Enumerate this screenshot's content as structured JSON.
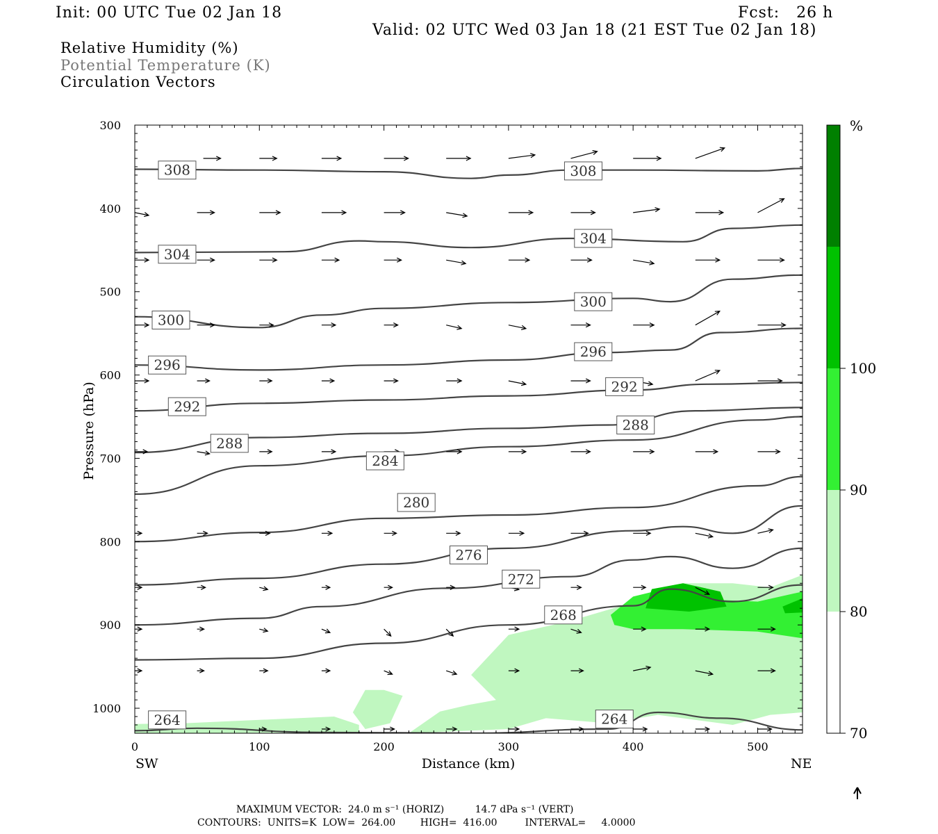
{
  "header": {
    "init": "Init: 00 UTC Tue 02 Jan 18",
    "fcst": "Fcst:   26 h",
    "valid": "Valid: 02 UTC Wed 03 Jan 18 (21 EST Tue 02 Jan 18)"
  },
  "legend": {
    "line1": "Relative Humidity (%)",
    "line2": "Potential Temperature (K)",
    "line3": "Circulation Vectors"
  },
  "footer": {
    "max_vector": "MAXIMUM VECTOR:  24.0 m s⁻¹ (HORIZ)          14.7 dPa s⁻¹ (VERT)",
    "contours": "CONTOURS:  UNITS=K  LOW=  264.00        HIGH=  416.00         INTERVAL=     4.0000"
  },
  "colors": {
    "rh70": "#c0f7c0",
    "rh80": "#33f033",
    "rh90": "#00c200",
    "rh100": "#008000",
    "theta": "#444444"
  },
  "chart_data": {
    "type": "cross-section",
    "xlabel": "Distance (km)",
    "ylabel": "Pressure (hPa)",
    "xlim": [
      0,
      536
    ],
    "ylim": [
      1030,
      300
    ],
    "x_ticks": [
      0,
      100,
      200,
      300,
      400,
      500
    ],
    "y_ticks": [
      300,
      400,
      500,
      600,
      700,
      800,
      900,
      1000
    ],
    "x_left_label": "SW",
    "x_right_label": "NE",
    "colorbar": {
      "unit": "%",
      "levels": [
        70,
        80,
        90,
        100
      ],
      "labels": [
        "70",
        "80",
        "90",
        "100"
      ]
    },
    "theta_contours": [
      {
        "value": 308,
        "points": [
          [
            0,
            353
          ],
          [
            100,
            354
          ],
          [
            200,
            356
          ],
          [
            270,
            364
          ],
          [
            300,
            360
          ],
          [
            350,
            354
          ],
          [
            400,
            354
          ],
          [
            500,
            355
          ],
          [
            536,
            352
          ]
        ]
      },
      {
        "value": 304,
        "points": [
          [
            0,
            453
          ],
          [
            120,
            452
          ],
          [
            180,
            439
          ],
          [
            200,
            440
          ],
          [
            270,
            447
          ],
          [
            350,
            436
          ],
          [
            440,
            440
          ],
          [
            480,
            424
          ],
          [
            536,
            420
          ]
        ]
      },
      {
        "value": 300,
        "points": [
          [
            0,
            530
          ],
          [
            100,
            543
          ],
          [
            150,
            528
          ],
          [
            200,
            520
          ],
          [
            300,
            513
          ],
          [
            400,
            508
          ],
          [
            430,
            512
          ],
          [
            480,
            485
          ],
          [
            536,
            480
          ]
        ]
      },
      {
        "value": 296,
        "points": [
          [
            0,
            588
          ],
          [
            100,
            594
          ],
          [
            200,
            588
          ],
          [
            300,
            582
          ],
          [
            380,
            573
          ],
          [
            430,
            570
          ],
          [
            470,
            549
          ],
          [
            536,
            544
          ]
        ]
      },
      {
        "value": 292,
        "points": [
          [
            0,
            643
          ],
          [
            100,
            634
          ],
          [
            200,
            630
          ],
          [
            300,
            625
          ],
          [
            400,
            618
          ],
          [
            460,
            611
          ],
          [
            536,
            609
          ]
        ]
      },
      {
        "value": 288,
        "points": [
          [
            0,
            693
          ],
          [
            100,
            675
          ],
          [
            200,
            670
          ],
          [
            300,
            664
          ],
          [
            380,
            660
          ],
          [
            450,
            643
          ],
          [
            536,
            639
          ]
        ]
      },
      {
        "value": 284,
        "points": [
          [
            0,
            743
          ],
          [
            100,
            709
          ],
          [
            200,
            697
          ],
          [
            300,
            686
          ],
          [
            400,
            678
          ],
          [
            500,
            654
          ],
          [
            536,
            650
          ]
        ]
      },
      {
        "value": 280,
        "points": [
          [
            0,
            800
          ],
          [
            100,
            789
          ],
          [
            200,
            772
          ],
          [
            300,
            768
          ],
          [
            400,
            759
          ],
          [
            500,
            733
          ],
          [
            536,
            722
          ]
        ]
      },
      {
        "value": 276,
        "points": [
          [
            0,
            852
          ],
          [
            100,
            844
          ],
          [
            200,
            827
          ],
          [
            300,
            808
          ],
          [
            400,
            787
          ],
          [
            440,
            782
          ],
          [
            480,
            790
          ],
          [
            536,
            757
          ]
        ]
      },
      {
        "value": 272,
        "points": [
          [
            0,
            900
          ],
          [
            100,
            892
          ],
          [
            150,
            878
          ],
          [
            250,
            856
          ],
          [
            350,
            842
          ],
          [
            400,
            822
          ],
          [
            430,
            818
          ],
          [
            480,
            832
          ],
          [
            536,
            808
          ]
        ]
      },
      {
        "value": 268,
        "points": [
          [
            0,
            942
          ],
          [
            100,
            940
          ],
          [
            200,
            922
          ],
          [
            300,
            900
          ],
          [
            400,
            877
          ],
          [
            430,
            857
          ],
          [
            480,
            872
          ],
          [
            536,
            852
          ]
        ]
      },
      {
        "value": 264,
        "points": [
          [
            0,
            1027
          ],
          [
            50,
            1024
          ],
          [
            150,
            1029
          ],
          [
            270,
            1030
          ],
          [
            380,
            1025
          ],
          [
            420,
            1005
          ],
          [
            470,
            1012
          ],
          [
            536,
            1026
          ]
        ]
      }
    ],
    "rh_regions": [
      {
        "level": 70,
        "points": [
          [
            200,
            978
          ],
          [
            215,
            985
          ],
          [
            205,
            1018
          ],
          [
            185,
            1025
          ],
          [
            175,
            1005
          ],
          [
            185,
            978
          ]
        ]
      },
      {
        "level": 70,
        "points": [
          [
            0,
            1019
          ],
          [
            40,
            1018
          ],
          [
            160,
            1010
          ],
          [
            180,
            1020
          ],
          [
            180,
            1029
          ],
          [
            0,
            1030
          ]
        ]
      },
      {
        "level": 70,
        "points": [
          [
            220,
            1030
          ],
          [
            245,
            1004
          ],
          [
            268,
            996
          ],
          [
            290,
            990
          ],
          [
            270,
            960
          ],
          [
            300,
            912
          ],
          [
            350,
            895
          ],
          [
            400,
            873
          ],
          [
            440,
            850
          ],
          [
            480,
            850
          ],
          [
            510,
            855
          ],
          [
            536,
            840
          ],
          [
            536,
            1005
          ],
          [
            510,
            1008
          ],
          [
            480,
            1020
          ],
          [
            420,
            1008
          ],
          [
            380,
            1018
          ],
          [
            330,
            1012
          ],
          [
            300,
            1025
          ]
        ]
      },
      {
        "level": 80,
        "points": [
          [
            382,
            888
          ],
          [
            400,
            866
          ],
          [
            430,
            855
          ],
          [
            470,
            870
          ],
          [
            500,
            872
          ],
          [
            536,
            860
          ],
          [
            536,
            916
          ],
          [
            500,
            908
          ],
          [
            440,
            905
          ],
          [
            400,
            905
          ],
          [
            385,
            900
          ]
        ]
      },
      {
        "level": 90,
        "points": [
          [
            410,
            880
          ],
          [
            415,
            857
          ],
          [
            440,
            850
          ],
          [
            470,
            860
          ],
          [
            475,
            878
          ],
          [
            445,
            884
          ]
        ]
      },
      {
        "level": 90,
        "points": [
          [
            520,
            878
          ],
          [
            536,
            868
          ],
          [
            536,
            885
          ],
          [
            522,
            886
          ]
        ]
      }
    ],
    "vectors": [
      {
        "p": 340,
        "x": [
          55,
          100,
          150,
          200,
          250,
          300,
          350,
          400,
          450
        ],
        "dx": [
          25,
          25,
          28,
          35,
          35,
          38,
          38,
          40,
          42
        ],
        "dy": [
          0,
          0,
          0,
          0,
          0,
          -5,
          -10,
          0,
          -15
        ]
      },
      {
        "p": 405,
        "x": [
          0,
          50,
          100,
          150,
          200,
          250,
          300,
          350,
          400,
          450,
          500
        ],
        "dx": [
          20,
          25,
          30,
          35,
          30,
          30,
          35,
          35,
          38,
          40,
          38
        ],
        "dy": [
          4,
          0,
          0,
          0,
          0,
          5,
          0,
          0,
          -5,
          0,
          -20
        ]
      },
      {
        "p": 462,
        "x": [
          0,
          50,
          100,
          150,
          200,
          250,
          300,
          350,
          400,
          450,
          500
        ],
        "dx": [
          20,
          25,
          25,
          25,
          25,
          28,
          30,
          30,
          30,
          35,
          38
        ],
        "dy": [
          0,
          0,
          0,
          0,
          0,
          5,
          0,
          0,
          5,
          0,
          0
        ]
      },
      {
        "p": 540,
        "x": [
          0,
          50,
          100,
          150,
          200,
          250,
          300,
          350,
          400,
          450,
          500
        ],
        "dx": [
          20,
          25,
          20,
          20,
          20,
          22,
          25,
          28,
          30,
          35,
          40
        ],
        "dy": [
          0,
          0,
          0,
          0,
          0,
          5,
          5,
          0,
          0,
          -20,
          0
        ]
      },
      {
        "p": 607,
        "x": [
          0,
          50,
          100,
          150,
          200,
          250,
          300,
          350,
          400,
          450,
          500
        ],
        "dx": [
          20,
          18,
          18,
          18,
          20,
          22,
          25,
          28,
          28,
          35,
          35
        ],
        "dy": [
          0,
          0,
          0,
          0,
          0,
          0,
          5,
          0,
          5,
          -15,
          0
        ]
      },
      {
        "p": 692,
        "x": [
          0,
          50,
          100,
          150,
          200,
          250,
          300,
          350,
          400,
          450,
          500
        ],
        "dx": [
          18,
          18,
          18,
          20,
          22,
          22,
          25,
          28,
          30,
          32,
          32
        ],
        "dy": [
          0,
          3,
          0,
          0,
          0,
          0,
          0,
          0,
          0,
          0,
          0
        ]
      },
      {
        "p": 790,
        "x": [
          0,
          50,
          100,
          150,
          200,
          250,
          300,
          350,
          400,
          450,
          500
        ],
        "dx": [
          10,
          15,
          15,
          15,
          18,
          20,
          22,
          25,
          25,
          25,
          22
        ],
        "dy": [
          0,
          0,
          0,
          0,
          0,
          0,
          0,
          0,
          0,
          5,
          -5
        ]
      },
      {
        "p": 855,
        "x": [
          0,
          50,
          100,
          150,
          200,
          250,
          300,
          350,
          400,
          450,
          500
        ],
        "dx": [
          10,
          12,
          12,
          12,
          12,
          12,
          15,
          15,
          18,
          20,
          22
        ],
        "dy": [
          0,
          0,
          3,
          0,
          0,
          0,
          3,
          0,
          0,
          10,
          0
        ]
      },
      {
        "p": 905,
        "x": [
          0,
          50,
          100,
          150,
          200,
          250,
          300,
          350,
          400,
          450,
          500
        ],
        "dx": [
          10,
          10,
          12,
          12,
          10,
          10,
          15,
          15,
          18,
          20,
          25
        ],
        "dy": [
          0,
          0,
          3,
          5,
          10,
          10,
          0,
          5,
          0,
          0,
          0
        ]
      },
      {
        "p": 955,
        "x": [
          0,
          50,
          100,
          150,
          200,
          250,
          300,
          350,
          400,
          450,
          500
        ],
        "dx": [
          10,
          10,
          12,
          12,
          12,
          15,
          15,
          18,
          25,
          25,
          25
        ],
        "dy": [
          0,
          0,
          0,
          0,
          5,
          5,
          0,
          0,
          -5,
          5,
          0
        ]
      },
      {
        "p": 1025,
        "x": [
          100,
          150,
          200,
          250,
          300,
          350,
          400,
          450,
          500
        ],
        "dx": [
          10,
          12,
          15,
          15,
          15,
          18,
          20,
          20,
          20
        ],
        "dy": [
          0,
          0,
          0,
          0,
          0,
          0,
          0,
          0,
          0
        ]
      }
    ],
    "theta_labels": [
      {
        "value": "308",
        "x": 34,
        "p": 354
      },
      {
        "value": "308",
        "x": 360,
        "p": 355
      },
      {
        "value": "304",
        "x": 34,
        "p": 455
      },
      {
        "value": "304",
        "x": 368,
        "p": 436
      },
      {
        "value": "300",
        "x": 29,
        "p": 534
      },
      {
        "value": "300",
        "x": 368,
        "p": 512
      },
      {
        "value": "296",
        "x": 26,
        "p": 588
      },
      {
        "value": "296",
        "x": 368,
        "p": 572
      },
      {
        "value": "292",
        "x": 42,
        "p": 638
      },
      {
        "value": "292",
        "x": 393,
        "p": 614
      },
      {
        "value": "288",
        "x": 76,
        "p": 682
      },
      {
        "value": "288",
        "x": 402,
        "p": 660
      },
      {
        "value": "284",
        "x": 201,
        "p": 703
      },
      {
        "value": "280",
        "x": 226,
        "p": 753
      },
      {
        "value": "276",
        "x": 268,
        "p": 816
      },
      {
        "value": "272",
        "x": 310,
        "p": 845
      },
      {
        "value": "268",
        "x": 344,
        "p": 888
      },
      {
        "value": "264",
        "x": 26,
        "p": 1014
      },
      {
        "value": "264",
        "x": 385,
        "p": 1013
      }
    ]
  }
}
